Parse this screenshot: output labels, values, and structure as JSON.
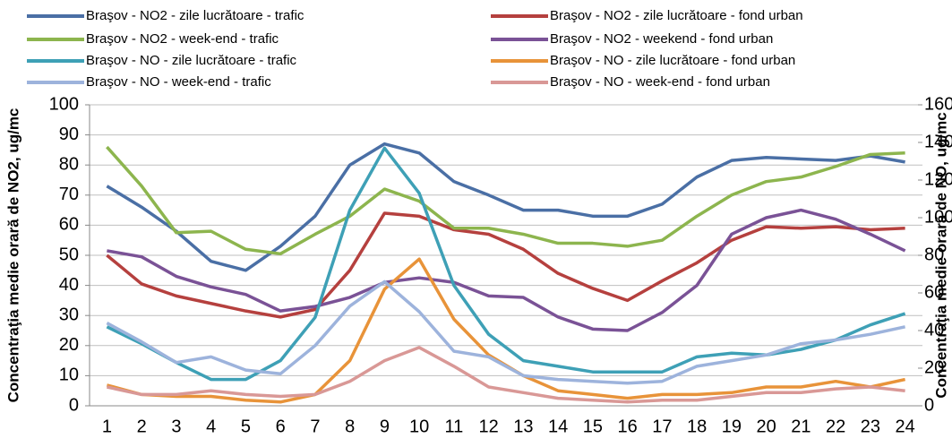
{
  "chart_data": {
    "type": "line",
    "categories": [
      "1",
      "2",
      "3",
      "4",
      "5",
      "6",
      "7",
      "8",
      "9",
      "10",
      "11",
      "12",
      "13",
      "14",
      "15",
      "16",
      "17",
      "18",
      "19",
      "20",
      "21",
      "22",
      "23",
      "24"
    ],
    "y_label": "Concentraţia medie orară de NO2, ug/mc",
    "y2_label": "Concentraţia medie orară de NO, ug/mc",
    "ylim": [
      0,
      100
    ],
    "yticks": [
      0,
      10,
      20,
      30,
      40,
      50,
      60,
      70,
      80,
      90,
      100
    ],
    "y2lim": [
      0,
      160
    ],
    "y2ticks": [
      0,
      20,
      40,
      60,
      80,
      100,
      120,
      140,
      160
    ],
    "grid": true,
    "series": [
      {
        "name": "Braşov - NO2 - zile lucrătoare - trafic",
        "color": "#4a6fa5",
        "values": [
          73,
          66,
          58,
          48,
          45,
          53,
          63,
          80,
          87,
          84,
          74.5,
          70,
          65,
          65,
          63,
          63,
          67,
          76,
          81.5,
          82.5,
          82,
          81.5,
          83,
          81
        ]
      },
      {
        "name": "Braşov - NO2 - zile lucrătoare - fond urban",
        "color": "#b5403e",
        "values": [
          50,
          40.5,
          36.5,
          34,
          31.5,
          29.5,
          32,
          45,
          64,
          63,
          58.5,
          57,
          52,
          44,
          39,
          35,
          41.5,
          47.5,
          55,
          59.5,
          59,
          59.5,
          58.5,
          59
        ]
      },
      {
        "name": "Braşov - NO2 - week-end - trafic",
        "color": "#8db54e",
        "values": [
          86,
          73,
          57.5,
          58,
          52,
          50.5,
          57,
          63,
          72,
          68,
          59,
          59,
          57,
          54,
          54,
          53,
          55,
          63,
          70,
          74.5,
          76,
          79.5,
          83.5,
          84
        ]
      },
      {
        "name": "Braşov - NO2 - weekend - fond urban",
        "color": "#7a5296",
        "values": [
          51.5,
          49.5,
          43,
          39.5,
          37,
          31.5,
          33,
          36,
          41,
          42.5,
          41,
          36.5,
          36,
          29.5,
          25.5,
          25,
          31,
          40,
          57,
          62.5,
          65,
          62,
          57,
          51.5
        ]
      },
      {
        "name": "Braşov - NO - zile lucrătoare - trafic",
        "color": "#3ea0b6",
        "axis": "y2",
        "values": [
          42,
          33,
          23,
          14,
          14,
          24,
          47,
          104,
          137,
          113,
          64,
          38,
          24,
          21,
          18,
          18,
          18,
          26,
          28,
          27,
          30,
          35,
          43,
          49
        ]
      },
      {
        "name": "Braşov - NO - zile lucrătoare - fond urban",
        "color": "#e89339",
        "axis": "y2",
        "values": [
          11,
          6,
          5,
          5,
          3,
          2,
          6,
          24,
          62,
          78,
          46,
          27,
          16,
          8,
          6,
          4,
          6,
          6,
          7,
          10,
          10,
          13,
          10,
          14
        ]
      },
      {
        "name": "Braşov - NO - week-end - trafic",
        "color": "#9db3dc",
        "axis": "y2",
        "values": [
          44,
          34,
          23,
          26,
          19,
          17,
          32,
          53,
          66,
          50,
          29,
          26,
          16,
          14,
          13,
          12,
          13,
          21,
          24,
          27,
          33,
          35,
          38,
          42
        ]
      },
      {
        "name": "Braşov - NO - week-end - fond urban",
        "color": "#d99896",
        "axis": "y2",
        "values": [
          10,
          6,
          6,
          8,
          6,
          5,
          6,
          13,
          24,
          31,
          21,
          10,
          7,
          4,
          3,
          2,
          3,
          3,
          5,
          7,
          7,
          9,
          10,
          8
        ]
      }
    ]
  }
}
